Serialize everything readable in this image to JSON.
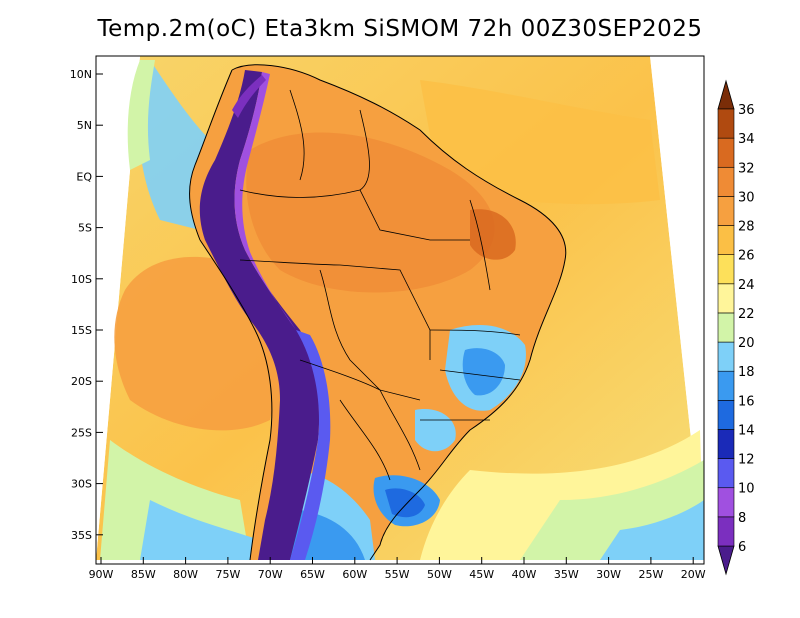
{
  "title": "Temp.2m(oC) Eta3km SiSMOM 72h 00Z30SEP2025",
  "latitude_labels": [
    "10N",
    "5N",
    "EQ",
    "5S",
    "10S",
    "15S",
    "20S",
    "25S",
    "30S",
    "35S"
  ],
  "longitude_labels": [
    "90W",
    "85W",
    "80W",
    "75W",
    "70W",
    "65W",
    "60W",
    "55W",
    "50W",
    "45W",
    "40W",
    "35W",
    "30W",
    "25W",
    "20W"
  ],
  "colorbar": {
    "labels": [
      "6",
      "8",
      "10",
      "12",
      "14",
      "16",
      "18",
      "20",
      "22",
      "24",
      "26",
      "28",
      "30",
      "32",
      "34",
      "36"
    ],
    "colors": [
      "#4a1c8c",
      "#7b2fbf",
      "#a050e0",
      "#5a5af0",
      "#1a2ab8",
      "#1e6ae0",
      "#3a9af0",
      "#7ed0f8",
      "#d2f4a8",
      "#fff59a",
      "#fde05a",
      "#fbbf45",
      "#f6a040",
      "#ef8b35",
      "#d96a20",
      "#b04a10",
      "#7a2d08"
    ]
  }
}
